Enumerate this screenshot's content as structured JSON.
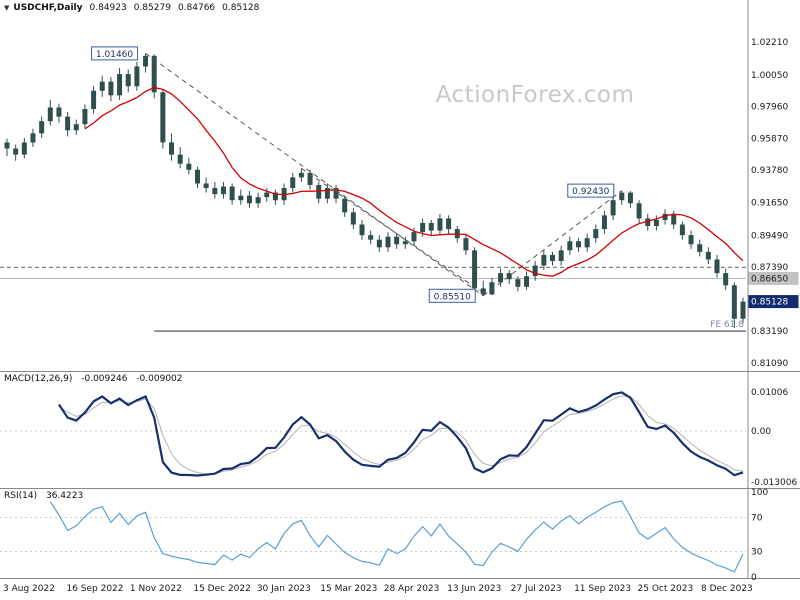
{
  "header": {
    "marker_icon": "▼",
    "symbol": "USDCHF,Daily",
    "open": "0.84923",
    "high": "0.85279",
    "low": "0.84766",
    "close": "0.85128"
  },
  "watermark": "ActionForex.com",
  "colors": {
    "candle": "#2f4f4f",
    "ma": "#d40000",
    "macd": "#1b2f6e",
    "signal": "#b3b3b3",
    "rsi": "#5b9fd4",
    "callout_border": "#3a5fa0",
    "callout_text": "#1b2f6e",
    "last_price_bg": "#122a6e",
    "last_price_text": "#ffffff",
    "level_tag_bg": "#c2c2c2",
    "level_tag_text": "#222222",
    "axis_text": "#1a1a1a",
    "grid": "#bbbbbb",
    "separator": "#8a8a8a",
    "trendline": "#555555",
    "fe_line": "#444444",
    "fe_text": "#8585a8",
    "dashed_level": "#333333"
  },
  "panels": {
    "price": {
      "y_tick_labels": [
        "1.02210",
        "1.00050",
        "0.97960",
        "0.95870",
        "0.93780",
        "0.91650",
        "0.89490",
        "0.87390",
        "0.83190",
        "0.81090"
      ],
      "level_tag": "0.86650",
      "last_price_tag": "0.85128"
    },
    "macd": {
      "title": "MACD(12,26,9)",
      "value_main": "-0.009246",
      "value_signal": "-0.009002",
      "y_tick_labels": [
        "0.01006",
        "0.00",
        "-0.013006"
      ]
    },
    "rsi": {
      "title": "RSI(14)",
      "value": "36.4223",
      "y_tick_labels": [
        "100",
        "70",
        "30",
        "0"
      ]
    }
  },
  "annotations": {
    "callouts": [
      {
        "text": "1.01460",
        "index": 16,
        "price": 1.0146
      },
      {
        "text": "0.92430",
        "index": 71,
        "price": 0.9243
      },
      {
        "text": "0.85510",
        "index": 55,
        "price": 0.8551
      }
    ],
    "trendlines": [
      {
        "from": [
          16,
          1.0146
        ],
        "to": [
          55,
          0.8551
        ]
      },
      {
        "from": [
          34,
          0.939
        ],
        "to": [
          55,
          0.857
        ]
      },
      {
        "from": [
          55,
          0.8551
        ],
        "to": [
          71,
          0.9243
        ]
      }
    ],
    "levels": {
      "dashed": 0.8739,
      "gray": 0.8665
    },
    "fe": {
      "text": "FE 61.8",
      "price": 0.8319,
      "start_index": 17
    }
  },
  "chart_data": [
    {
      "type": "candlestick",
      "title": "USDCHF Daily",
      "ylim": [
        0.8089,
        1.0392
      ],
      "x_tick_labels": [
        "3 Aug 2022",
        "16 Sep 2022",
        "1 Nov 2022",
        "15 Dec 2022",
        "30 Jan 2023",
        "15 Mar 2023",
        "28 Apr 2023",
        "13 Jun 2023",
        "27 Jul 2023",
        "11 Sep 2023",
        "25 Oct 2023",
        "8 Dec 2023"
      ],
      "key_points": {
        "high_2022": 1.0146,
        "low_jun_2023": 0.8551,
        "high_sep_2023": 0.9243,
        "last": 0.85128,
        "fe_projection": 0.8319
      },
      "overlays": [
        {
          "name": "red-moving-average",
          "type": "sma",
          "window": 10
        }
      ],
      "ohlc": [
        [
          0.956,
          0.9585,
          0.947,
          0.952
        ],
        [
          0.952,
          0.9545,
          0.944,
          0.948
        ],
        [
          0.948,
          0.959,
          0.9455,
          0.956
        ],
        [
          0.956,
          0.965,
          0.953,
          0.962
        ],
        [
          0.962,
          0.973,
          0.959,
          0.97
        ],
        [
          0.97,
          0.984,
          0.967,
          0.979
        ],
        [
          0.979,
          0.9815,
          0.969,
          0.973
        ],
        [
          0.973,
          0.976,
          0.96,
          0.964
        ],
        [
          0.964,
          0.971,
          0.961,
          0.968
        ],
        [
          0.968,
          0.981,
          0.965,
          0.978
        ],
        [
          0.978,
          0.993,
          0.975,
          0.99
        ],
        [
          0.99,
          1.0,
          0.986,
          0.996
        ],
        [
          0.996,
          0.999,
          0.983,
          0.987
        ],
        [
          0.987,
          1.005,
          0.984,
          1.001
        ],
        [
          1.001,
          1.004,
          0.989,
          0.993
        ],
        [
          0.993,
          1.009,
          0.99,
          1.006
        ],
        [
          1.006,
          1.0146,
          1.002,
          1.013
        ],
        [
          1.013,
          1.014,
          0.985,
          0.989
        ],
        [
          0.989,
          0.991,
          0.952,
          0.956
        ],
        [
          0.956,
          0.962,
          0.944,
          0.948
        ],
        [
          0.948,
          0.953,
          0.939,
          0.942
        ],
        [
          0.942,
          0.946,
          0.935,
          0.938
        ],
        [
          0.938,
          0.94,
          0.926,
          0.929
        ],
        [
          0.929,
          0.933,
          0.923,
          0.926
        ],
        [
          0.926,
          0.93,
          0.919,
          0.922
        ],
        [
          0.922,
          0.93,
          0.919,
          0.927
        ],
        [
          0.927,
          0.929,
          0.915,
          0.918
        ],
        [
          0.918,
          0.925,
          0.915,
          0.921
        ],
        [
          0.921,
          0.924,
          0.913,
          0.916
        ],
        [
          0.916,
          0.923,
          0.913,
          0.92
        ],
        [
          0.92,
          0.926,
          0.917,
          0.923
        ],
        [
          0.923,
          0.925,
          0.915,
          0.918
        ],
        [
          0.918,
          0.929,
          0.915,
          0.926
        ],
        [
          0.926,
          0.936,
          0.923,
          0.933
        ],
        [
          0.933,
          0.939,
          0.93,
          0.936
        ],
        [
          0.936,
          0.938,
          0.925,
          0.928
        ],
        [
          0.928,
          0.93,
          0.916,
          0.919
        ],
        [
          0.919,
          0.929,
          0.916,
          0.926
        ],
        [
          0.926,
          0.928,
          0.916,
          0.919
        ],
        [
          0.919,
          0.921,
          0.907,
          0.91
        ],
        [
          0.91,
          0.913,
          0.899,
          0.902
        ],
        [
          0.902,
          0.905,
          0.892,
          0.895
        ],
        [
          0.895,
          0.898,
          0.889,
          0.892
        ],
        [
          0.892,
          0.895,
          0.884,
          0.887
        ],
        [
          0.887,
          0.897,
          0.884,
          0.894
        ],
        [
          0.894,
          0.896,
          0.886,
          0.889
        ],
        [
          0.889,
          0.894,
          0.886,
          0.891
        ],
        [
          0.891,
          0.9,
          0.888,
          0.897
        ],
        [
          0.897,
          0.906,
          0.894,
          0.903
        ],
        [
          0.903,
          0.905,
          0.895,
          0.898
        ],
        [
          0.898,
          0.909,
          0.895,
          0.906
        ],
        [
          0.906,
          0.908,
          0.896,
          0.899
        ],
        [
          0.899,
          0.901,
          0.89,
          0.893
        ],
        [
          0.893,
          0.895,
          0.882,
          0.885
        ],
        [
          0.885,
          0.887,
          0.857,
          0.86
        ],
        [
          0.86,
          0.865,
          0.8551,
          0.856
        ],
        [
          0.856,
          0.867,
          0.8555,
          0.864
        ],
        [
          0.864,
          0.873,
          0.861,
          0.87
        ],
        [
          0.87,
          0.872,
          0.863,
          0.866
        ],
        [
          0.866,
          0.868,
          0.858,
          0.861
        ],
        [
          0.861,
          0.871,
          0.859,
          0.868
        ],
        [
          0.868,
          0.878,
          0.865,
          0.875
        ],
        [
          0.875,
          0.885,
          0.872,
          0.882
        ],
        [
          0.882,
          0.884,
          0.875,
          0.878
        ],
        [
          0.878,
          0.888,
          0.875,
          0.885
        ],
        [
          0.885,
          0.894,
          0.882,
          0.891
        ],
        [
          0.891,
          0.893,
          0.884,
          0.887
        ],
        [
          0.887,
          0.896,
          0.884,
          0.893
        ],
        [
          0.893,
          0.902,
          0.89,
          0.899
        ],
        [
          0.899,
          0.911,
          0.896,
          0.908
        ],
        [
          0.908,
          0.921,
          0.905,
          0.918
        ],
        [
          0.918,
          0.9243,
          0.915,
          0.923
        ],
        [
          0.923,
          0.924,
          0.913,
          0.916
        ],
        [
          0.916,
          0.918,
          0.903,
          0.906
        ],
        [
          0.906,
          0.909,
          0.898,
          0.901
        ],
        [
          0.901,
          0.908,
          0.898,
          0.905
        ],
        [
          0.905,
          0.912,
          0.902,
          0.909
        ],
        [
          0.909,
          0.911,
          0.899,
          0.902
        ],
        [
          0.902,
          0.904,
          0.892,
          0.895
        ],
        [
          0.895,
          0.898,
          0.886,
          0.889
        ],
        [
          0.889,
          0.892,
          0.881,
          0.884
        ],
        [
          0.884,
          0.887,
          0.876,
          0.879
        ],
        [
          0.879,
          0.882,
          0.867,
          0.87
        ],
        [
          0.87,
          0.873,
          0.859,
          0.862
        ],
        [
          0.862,
          0.864,
          0.8339,
          0.84
        ],
        [
          0.84,
          0.854,
          0.837,
          0.85128
        ]
      ]
    },
    {
      "type": "line",
      "name": "MACD(12,26,9)",
      "derived_from": "ohlc closes (EMA fast minus EMA slow, signal = EMA of MACD)",
      "current_macd": -0.009246,
      "current_signal": -0.009002,
      "ylim": [
        -0.01401,
        0.01307
      ]
    },
    {
      "type": "line",
      "name": "RSI(14)",
      "derived_from": "ohlc closes",
      "current": 36.4223,
      "ylim": [
        0,
        100
      ],
      "reference_lines": [
        70,
        30
      ]
    }
  ]
}
